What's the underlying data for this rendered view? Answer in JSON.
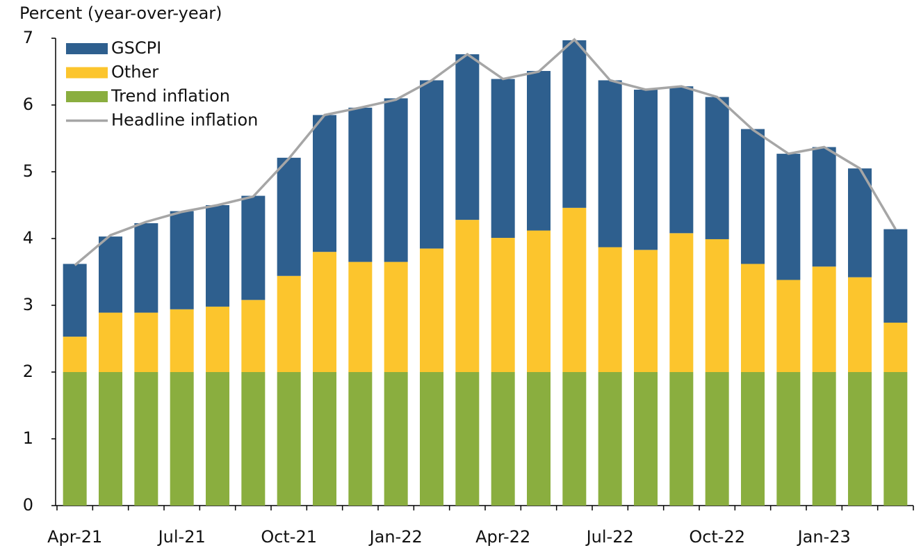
{
  "chart_data": {
    "type": "stacked_bar",
    "y_axis_label": "Percent (year-over-year)",
    "categories": [
      "Apr-21",
      null,
      null,
      "Jul-21",
      null,
      null,
      "Oct-21",
      null,
      null,
      "Jan-22",
      null,
      null,
      "Apr-22",
      null,
      null,
      "Jul-22",
      null,
      null,
      "Oct-22",
      null,
      null,
      "Jan-23",
      null,
      null
    ],
    "series": [
      {
        "name": "GSCPI",
        "type": "bar",
        "color": "#2e5f8e",
        "values": [
          1.09,
          1.14,
          1.34,
          1.47,
          1.52,
          1.56,
          1.77,
          2.05,
          2.31,
          2.45,
          2.52,
          2.48,
          2.38,
          2.39,
          2.51,
          2.5,
          2.4,
          2.2,
          2.13,
          2.02,
          1.89,
          1.79,
          1.63,
          1.4
        ]
      },
      {
        "name": "Other",
        "type": "bar",
        "color": "#fcc52d",
        "values": [
          0.53,
          0.89,
          0.89,
          0.94,
          0.98,
          1.08,
          1.44,
          1.8,
          1.65,
          1.65,
          1.85,
          2.28,
          2.01,
          2.12,
          2.46,
          1.87,
          1.83,
          2.08,
          1.99,
          1.62,
          1.38,
          1.58,
          1.42,
          0.74
        ]
      },
      {
        "name": "Trend inflation",
        "type": "bar",
        "color": "#8aae3f",
        "values": [
          2,
          2,
          2,
          2,
          2,
          2,
          2,
          2,
          2,
          2,
          2,
          2,
          2,
          2,
          2,
          2,
          2,
          2,
          2,
          2,
          2,
          2,
          2,
          2
        ]
      },
      {
        "name": "Headline inflation",
        "type": "line",
        "color": "#a6a6a6",
        "values": [
          3.6,
          4.05,
          4.25,
          4.4,
          4.5,
          4.63,
          5.2,
          5.85,
          5.96,
          6.08,
          6.37,
          6.76,
          6.39,
          6.5,
          6.98,
          6.37,
          6.23,
          6.28,
          6.12,
          5.63,
          5.27,
          5.37,
          5.05,
          4.14
        ]
      }
    ],
    "ylim": [
      0,
      7
    ],
    "yticks": [
      0,
      1,
      2,
      3,
      4,
      5,
      6,
      7
    ],
    "grid": false,
    "legend": "top-left"
  }
}
